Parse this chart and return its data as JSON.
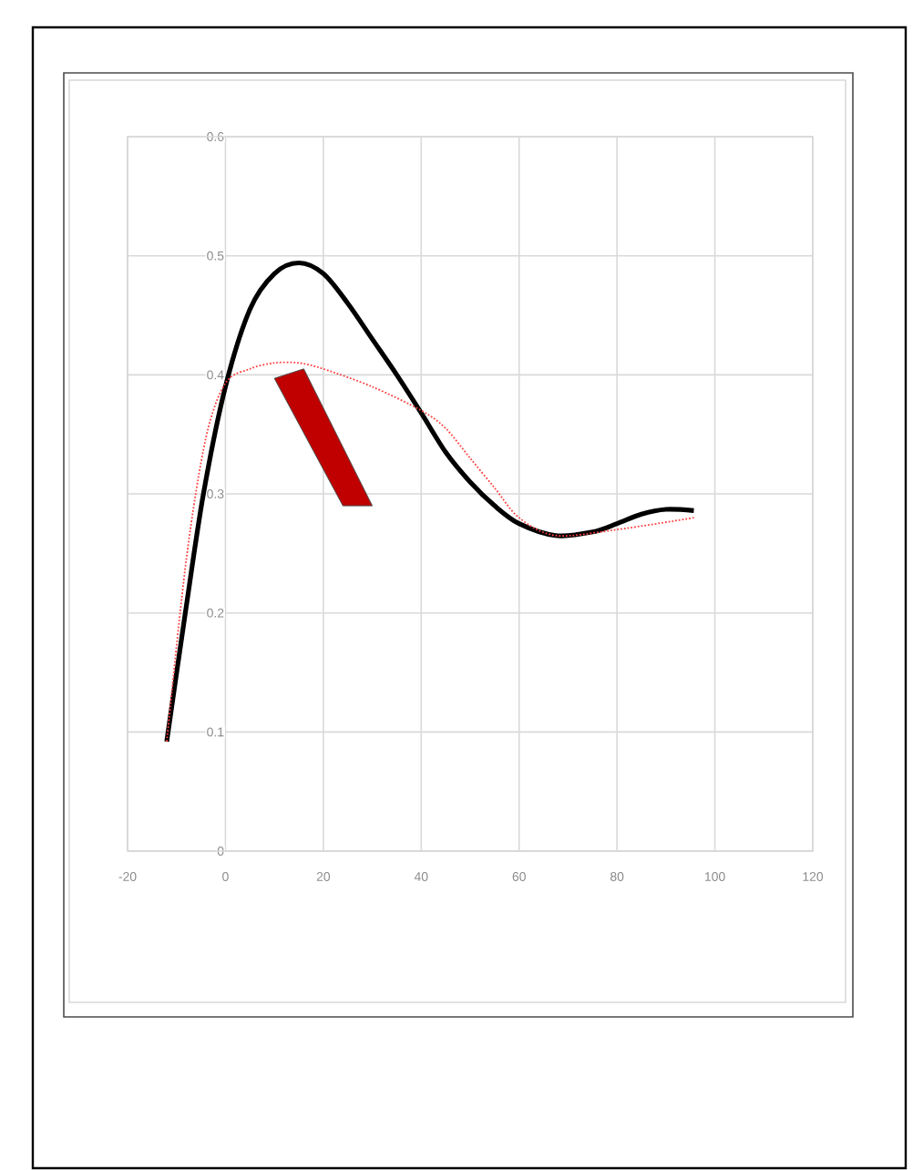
{
  "chart_data": {
    "type": "line",
    "xlim": [
      -20,
      120
    ],
    "ylim": [
      0,
      0.6
    ],
    "xticks": [
      -20,
      0,
      20,
      40,
      60,
      80,
      100,
      120
    ],
    "yticks": [
      0,
      0.1,
      0.2,
      0.3,
      0.4,
      0.5,
      0.6
    ],
    "grid": true,
    "series": [
      {
        "color": "#000000",
        "line_style": "solid",
        "x": [
          -12,
          -8.2,
          -4.5,
          0,
          5,
          10,
          15,
          20,
          25,
          30,
          35,
          40,
          45,
          50,
          55,
          60,
          67.5,
          75,
          80,
          85,
          90,
          95.7
        ],
        "values": [
          0.092,
          0.2,
          0.3,
          0.39,
          0.455,
          0.485,
          0.494,
          0.485,
          0.46,
          0.43,
          0.4,
          0.368,
          0.335,
          0.31,
          0.29,
          0.275,
          0.265,
          0.268,
          0.275,
          0.283,
          0.287,
          0.286
        ]
      },
      {
        "color": "#ff4040",
        "line_style": "dotted",
        "x": [
          -12,
          -8,
          -4,
          0,
          5,
          10,
          15,
          20,
          30,
          40,
          45,
          50,
          55,
          60,
          67.5,
          80,
          95.7
        ],
        "values": [
          0.092,
          0.245,
          0.347,
          0.393,
          0.405,
          0.41,
          0.41,
          0.405,
          0.39,
          0.37,
          0.355,
          0.33,
          0.305,
          0.28,
          0.265,
          0.27,
          0.28
        ]
      }
    ]
  }
}
